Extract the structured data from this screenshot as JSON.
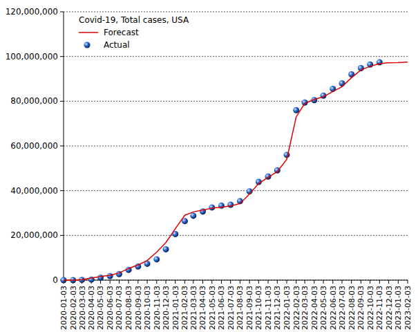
{
  "chart_data": {
    "type": "line",
    "title": "Covid-19, Total cases, USA",
    "x": [
      "2020-01-03",
      "2020-02-03",
      "2020-03-03",
      "2020-04-03",
      "2020-05-03",
      "2020-06-03",
      "2020-07-03",
      "2020-08-03",
      "2020-09-03",
      "2020-10-03",
      "2020-11-03",
      "2020-12-03",
      "2021-01-03",
      "2021-02-03",
      "2021-03-03",
      "2021-04-03",
      "2021-05-03",
      "2021-06-03",
      "2021-07-03",
      "2021-08-03",
      "2021-09-03",
      "2021-10-03",
      "2021-11-03",
      "2021-12-03",
      "2022-01-03",
      "2022-02-03",
      "2022-03-03",
      "2022-04-03",
      "2022-05-03",
      "2022-06-03",
      "2022-07-03",
      "2022-08-03",
      "2022-09-03",
      "2022-10-03",
      "2022-11-03",
      "2022-12-03",
      "2023-01-03",
      "2023-02-03"
    ],
    "series": [
      {
        "name": "Actual",
        "type": "scatter",
        "color": "#2f6fd6",
        "marker": "circle",
        "values": [
          0,
          0,
          100000,
          250000,
          1100000,
          1800000,
          2700000,
          4600000,
          6100000,
          7300000,
          9300000,
          13800000,
          20600000,
          26400000,
          28800000,
          30700000,
          32500000,
          33300000,
          33700000,
          35300000,
          39700000,
          43900000,
          46300000,
          49100000,
          56000000,
          76000000,
          79400000,
          80500000,
          82500000,
          85500000,
          88000000,
          92000000,
          94800000,
          96400000,
          97400000,
          null,
          null,
          null
        ]
      },
      {
        "name": "Forecast",
        "type": "line",
        "color": "#dd0000",
        "line_style": "solid",
        "values": [
          0,
          0,
          200000,
          900000,
          1600000,
          2200000,
          3200000,
          5200000,
          6800000,
          8800000,
          12500000,
          16800000,
          23000000,
          29000000,
          30500000,
          31300000,
          32200000,
          32600000,
          33200000,
          34200000,
          38500000,
          43200000,
          46000000,
          48500000,
          54000000,
          73000000,
          79000000,
          80800000,
          82000000,
          84300000,
          86500000,
          90500000,
          94000000,
          95600000,
          96800000,
          97200000,
          97300000,
          97500000
        ]
      }
    ],
    "xlim": [
      "2020-01-03",
      "2023-02-03"
    ],
    "xticks": [
      "2020-01-03",
      "2020-02-03",
      "2020-03-03",
      "2020-04-03",
      "2020-05-03",
      "2020-06-03",
      "2020-07-03",
      "2020-08-03",
      "2020-09-03",
      "2020-10-03",
      "2020-11-03",
      "2020-12-03",
      "2021-01-03",
      "2021-02-03",
      "2021-03-03",
      "2021-04-03",
      "2021-05-03",
      "2021-06-03",
      "2021-07-03",
      "2021-08-03",
      "2021-09-03",
      "2021-10-03",
      "2021-11-03",
      "2021-12-03",
      "2022-01-03",
      "2022-02-03",
      "2022-03-03",
      "2022-04-03",
      "2022-05-03",
      "2022-06-03",
      "2022-07-03",
      "2022-08-03",
      "2022-09-03",
      "2022-10-03",
      "2022-11-03",
      "2022-12-03",
      "2023-01-03",
      "2023-02-03"
    ],
    "ylim": [
      0,
      120000000
    ],
    "yticks": [
      0,
      {
        "value": 20000000,
        "label": "20,000,000"
      },
      {
        "value": 40000000,
        "label": "40,000,000"
      },
      {
        "value": 60000000,
        "label": "60,000,000"
      },
      {
        "value": 80000000,
        "label": "80,000,000"
      },
      {
        "value": 100000000,
        "label": "100,000,000"
      },
      {
        "value": 120000000,
        "label": "120,000,000"
      }
    ],
    "grid": true,
    "legend": "top-left"
  }
}
